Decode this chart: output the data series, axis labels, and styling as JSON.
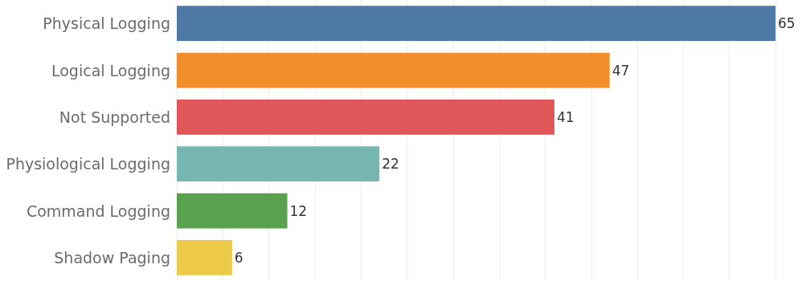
{
  "chart_data": {
    "type": "bar",
    "orientation": "horizontal",
    "categories": [
      "Physical Logging",
      "Logical Logging",
      "Not Supported",
      "Physiological Logging",
      "Command Logging",
      "Shadow Paging"
    ],
    "values": [
      65,
      47,
      41,
      22,
      12,
      6
    ],
    "colors": [
      "#4e79a7",
      "#f28e2b",
      "#e15759",
      "#76b7b2",
      "#59a14f",
      "#edc948"
    ],
    "xlim": [
      0,
      65
    ],
    "xticks": [
      0,
      5,
      10,
      15,
      20,
      25,
      30,
      35,
      40,
      45,
      50,
      55,
      60,
      65
    ],
    "tick_labels": "y",
    "grid": "x",
    "data_labels": true
  }
}
